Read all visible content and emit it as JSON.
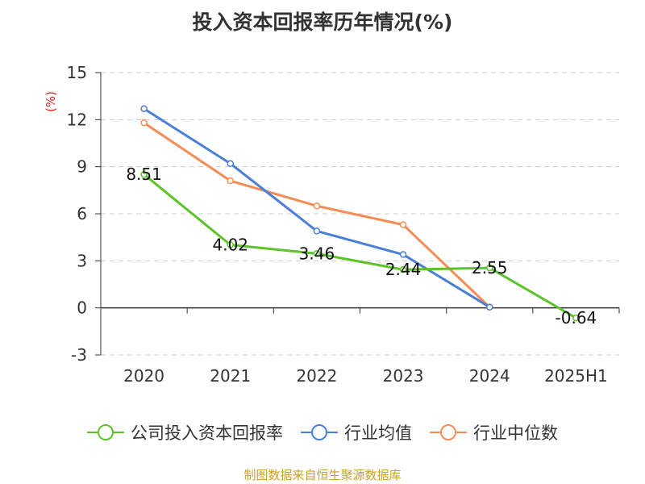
{
  "title": "投入资本回报率历年情况(%)",
  "source": "制图数据来自恒生聚源数据库",
  "colors": {
    "company": "#5ec22a",
    "industry_avg": "#4a7fd9",
    "industry_median": "#f68c55",
    "grid": "#cccccc",
    "axis": "#333333",
    "unit": "#e02020"
  },
  "chart_data": {
    "type": "line",
    "title": "投入资本回报率历年情况(%)",
    "ylabel": "(%)",
    "xlabel": "",
    "ylim": [
      -3,
      15
    ],
    "yticks": [
      -3,
      0,
      3,
      6,
      9,
      12,
      15
    ],
    "categories": [
      "2020",
      "2021",
      "2022",
      "2023",
      "2024",
      "2025H1"
    ],
    "grid": true,
    "legend_position": "bottom",
    "series": [
      {
        "name": "公司投入资本回报率",
        "color": "#5ec22a",
        "values": [
          8.51,
          4.02,
          3.46,
          2.44,
          2.55,
          -0.64
        ],
        "labels": [
          "8.51",
          "4.02",
          "3.46",
          "2.44",
          "2.55",
          "-0.64"
        ]
      },
      {
        "name": "行业均值",
        "color": "#4a7fd9",
        "values": [
          12.7,
          9.2,
          4.9,
          3.4,
          0.05,
          null
        ]
      },
      {
        "name": "行业中位数",
        "color": "#f68c55",
        "values": [
          11.8,
          8.1,
          6.5,
          5.3,
          0.05,
          null
        ]
      }
    ]
  },
  "legend": [
    {
      "label": "公司投入资本回报率",
      "color": "#5ec22a"
    },
    {
      "label": "行业均值",
      "color": "#4a7fd9"
    },
    {
      "label": "行业中位数",
      "color": "#f68c55"
    }
  ]
}
